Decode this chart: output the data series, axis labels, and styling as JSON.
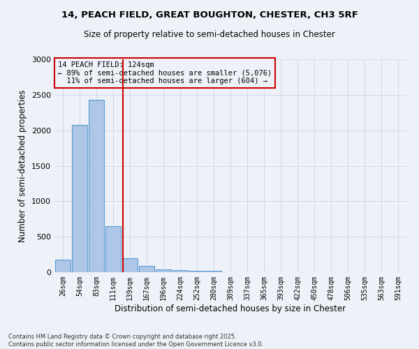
{
  "title1": "14, PEACH FIELD, GREAT BOUGHTON, CHESTER, CH3 5RF",
  "title2": "Size of property relative to semi-detached houses in Chester",
  "xlabel": "Distribution of semi-detached houses by size in Chester",
  "ylabel": "Number of semi-detached properties",
  "categories": [
    "26sqm",
    "54sqm",
    "83sqm",
    "111sqm",
    "139sqm",
    "167sqm",
    "196sqm",
    "224sqm",
    "252sqm",
    "280sqm",
    "309sqm",
    "337sqm",
    "365sqm",
    "393sqm",
    "422sqm",
    "450sqm",
    "478sqm",
    "506sqm",
    "535sqm",
    "563sqm",
    "591sqm"
  ],
  "bar_heights": [
    175,
    2075,
    2425,
    650,
    200,
    90,
    35,
    25,
    20,
    15,
    0,
    0,
    0,
    0,
    0,
    0,
    0,
    0,
    0,
    0,
    0
  ],
  "bar_color": "#aec6e8",
  "bar_edge_color": "#5b9bd5",
  "grid_color": "#d0d8e8",
  "background_color": "#eef2f8",
  "property_line_x": 3.6,
  "property_size": "124sqm",
  "property_name": "14 PEACH FIELD",
  "pct_smaller": 89,
  "n_smaller": 5076,
  "pct_larger": 11,
  "n_larger": 604,
  "annotation_box_color": "#cc0000",
  "ylim": [
    0,
    3000
  ],
  "yticks": [
    0,
    500,
    1000,
    1500,
    2000,
    2500,
    3000
  ],
  "footer1": "Contains HM Land Registry data © Crown copyright and database right 2025.",
  "footer2": "Contains public sector information licensed under the Open Government Licence v3.0."
}
